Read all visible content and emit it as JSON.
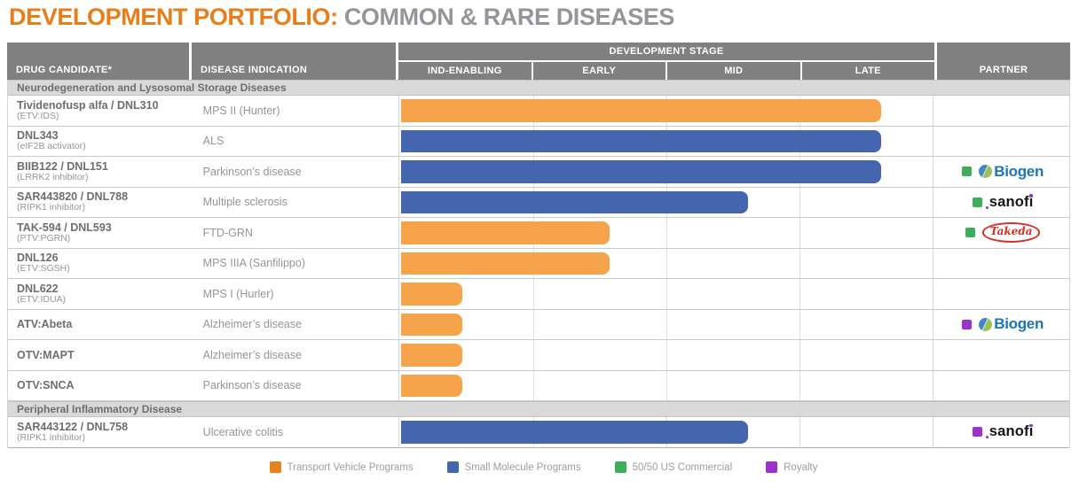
{
  "title": {
    "left": "DEVELOPMENT PORTFOLIO:",
    "right": "COMMON & RARE DISEASES"
  },
  "header": {
    "drug": "DRUG CANDIDATE*",
    "indication": "DISEASE INDICATION",
    "stage_group": "DEVELOPMENT STAGE",
    "stages": [
      "IND-ENABLING",
      "EARLY",
      "MID",
      "LATE"
    ],
    "partner": "PARTNER"
  },
  "colors": {
    "title_orange": "#E87D1A",
    "title_gray": "#939598",
    "header_bg": "#808080",
    "section_bg": "#D9D9D9",
    "bar_orange": "#F5A44C",
    "bar_blue": "#4565AE",
    "marker_green": "#3EAE5C",
    "marker_purple": "#9933CC",
    "biogen_blue": "#1B75BB",
    "takeda_red": "#D92D27",
    "sanofi_black": "#141414"
  },
  "program_colors": {
    "transport_vehicle": "#F5A44C",
    "small_molecule": "#4565AE"
  },
  "marker_colors": {
    "green": "#3EAE5C",
    "purple": "#9933CC"
  },
  "logos": {
    "biogen": "Biogen",
    "sanofi": "sanofi",
    "takeda": "Takeda"
  },
  "rows": [
    {
      "type": "section",
      "label": "Neurodegeneration and Lysosomal Storage Diseases"
    },
    {
      "type": "drug",
      "name": "Tividenofusp alfa / DNL310",
      "sub": "(ETV:IDS)",
      "indication": "MPS II (Hunter)",
      "program": "transport_vehicle",
      "bar_end_pct": 90,
      "partner": null
    },
    {
      "type": "drug",
      "name": "DNL343",
      "sub": "(eIF2B activator)",
      "indication": "ALS",
      "program": "small_molecule",
      "bar_end_pct": 90,
      "partner": null
    },
    {
      "type": "drug",
      "name": "BIIB122 / DNL151",
      "sub": "(LRRK2 inhibitor)",
      "indication": "Parkinson’s disease",
      "program": "small_molecule",
      "bar_end_pct": 90,
      "partner": {
        "marker": "green",
        "logo": "biogen"
      }
    },
    {
      "type": "drug",
      "name": "SAR443820 / DNL788",
      "sub": "(RIPK1 inhibitor)",
      "indication": "Multiple sclerosis",
      "program": "small_molecule",
      "bar_end_pct": 65,
      "partner": {
        "marker": "green",
        "logo": "sanofi"
      }
    },
    {
      "type": "drug",
      "name": "TAK-594 / DNL593",
      "sub": "(PTV:PGRN)",
      "indication": "FTD-GRN",
      "program": "transport_vehicle",
      "bar_end_pct": 39,
      "partner": {
        "marker": "green",
        "logo": "takeda"
      }
    },
    {
      "type": "drug",
      "name": "DNL126",
      "sub": "(ETV:SGSH)",
      "indication": "MPS IIIA (Sanfilippo)",
      "program": "transport_vehicle",
      "bar_end_pct": 39,
      "partner": null
    },
    {
      "type": "drug",
      "name": "DNL622",
      "sub": "(ETV:IDUA)",
      "indication": "MPS I (Hurler)",
      "program": "transport_vehicle",
      "bar_end_pct": 11.5,
      "partner": null
    },
    {
      "type": "drug",
      "name": "ATV:Abeta",
      "sub": "",
      "indication": "Alzheimer’s disease",
      "program": "transport_vehicle",
      "bar_end_pct": 11.5,
      "partner": {
        "marker": "purple",
        "logo": "biogen"
      }
    },
    {
      "type": "drug",
      "name": "OTV:MAPT",
      "sub": "",
      "indication": "Alzheimer’s disease",
      "program": "transport_vehicle",
      "bar_end_pct": 11.5,
      "partner": null
    },
    {
      "type": "drug",
      "name": "OTV:SNCA",
      "sub": "",
      "indication": "Parkinson’s disease",
      "program": "transport_vehicle",
      "bar_end_pct": 11.5,
      "partner": null
    },
    {
      "type": "section",
      "label": "Peripheral Inflammatory Disease"
    },
    {
      "type": "drug",
      "name": "SAR443122 / DNL758",
      "sub": "(RIPK1 inhibitor)",
      "indication": "Ulcerative colitis",
      "program": "small_molecule",
      "bar_end_pct": 65,
      "partner": {
        "marker": "purple",
        "logo": "sanofi"
      }
    }
  ],
  "legend": [
    {
      "label": "Transport Vehicle Programs",
      "color": "#E8821E"
    },
    {
      "label": "Small Molecule Programs",
      "color": "#4565AE"
    },
    {
      "label": "50/50 US Commercial",
      "color": "#3EAE5C"
    },
    {
      "label": "Royalty",
      "color": "#9933CC"
    }
  ],
  "chart_data": {
    "type": "bar",
    "title": "DEVELOPMENT PORTFOLIO: COMMON & RARE DISEASES",
    "xlabel": "DEVELOPMENT STAGE",
    "x_axis_stages": [
      "IND-ENABLING",
      "EARLY",
      "MID",
      "LATE"
    ],
    "value_unit": "development stages completed (0-4 scale, estimated from bar extent)",
    "xlim": [
      0,
      4
    ],
    "grid": true,
    "legend_position": "bottom",
    "legend": [
      "Transport Vehicle Programs",
      "Small Molecule Programs",
      "50/50 US Commercial",
      "Royalty"
    ],
    "series": [
      {
        "label": "Tividenofusp alfa / DNL310 (ETV:IDS)",
        "group": "Neurodegeneration and Lysosomal Storage Diseases",
        "indication": "MPS II (Hunter)",
        "program": "Transport Vehicle Programs",
        "value": 3.6,
        "partner": null,
        "partner_terms": null
      },
      {
        "label": "DNL343 (eIF2B activator)",
        "group": "Neurodegeneration and Lysosomal Storage Diseases",
        "indication": "ALS",
        "program": "Small Molecule Programs",
        "value": 3.6,
        "partner": null,
        "partner_terms": null
      },
      {
        "label": "BIIB122 / DNL151 (LRRK2 inhibitor)",
        "group": "Neurodegeneration and Lysosomal Storage Diseases",
        "indication": "Parkinson’s disease",
        "program": "Small Molecule Programs",
        "value": 3.6,
        "partner": "Biogen",
        "partner_terms": "50/50 US Commercial"
      },
      {
        "label": "SAR443820 / DNL788 (RIPK1 inhibitor)",
        "group": "Neurodegeneration and Lysosomal Storage Diseases",
        "indication": "Multiple sclerosis",
        "program": "Small Molecule Programs",
        "value": 2.6,
        "partner": "sanofi",
        "partner_terms": "50/50 US Commercial"
      },
      {
        "label": "TAK-594 / DNL593 (PTV:PGRN)",
        "group": "Neurodegeneration and Lysosomal Storage Diseases",
        "indication": "FTD-GRN",
        "program": "Transport Vehicle Programs",
        "value": 1.55,
        "partner": "Takeda",
        "partner_terms": "50/50 US Commercial"
      },
      {
        "label": "DNL126 (ETV:SGSH)",
        "group": "Neurodegeneration and Lysosomal Storage Diseases",
        "indication": "MPS IIIA (Sanfilippo)",
        "program": "Transport Vehicle Programs",
        "value": 1.55,
        "partner": null,
        "partner_terms": null
      },
      {
        "label": "DNL622 (ETV:IDUA)",
        "group": "Neurodegeneration and Lysosomal Storage Diseases",
        "indication": "MPS I (Hurler)",
        "program": "Transport Vehicle Programs",
        "value": 0.45,
        "partner": null,
        "partner_terms": null
      },
      {
        "label": "ATV:Abeta",
        "group": "Neurodegeneration and Lysosomal Storage Diseases",
        "indication": "Alzheimer’s disease",
        "program": "Transport Vehicle Programs",
        "value": 0.45,
        "partner": "Biogen",
        "partner_terms": "Royalty"
      },
      {
        "label": "OTV:MAPT",
        "group": "Neurodegeneration and Lysosomal Storage Diseases",
        "indication": "Alzheimer’s disease",
        "program": "Transport Vehicle Programs",
        "value": 0.45,
        "partner": null,
        "partner_terms": null
      },
      {
        "label": "OTV:SNCA",
        "group": "Neurodegeneration and Lysosomal Storage Diseases",
        "indication": "Parkinson’s disease",
        "program": "Transport Vehicle Programs",
        "value": 0.45,
        "partner": null,
        "partner_terms": null
      },
      {
        "label": "SAR443122 / DNL758 (RIPK1 inhibitor)",
        "group": "Peripheral Inflammatory Disease",
        "indication": "Ulcerative colitis",
        "program": "Small Molecule Programs",
        "value": 2.6,
        "partner": "sanofi",
        "partner_terms": "Royalty"
      }
    ]
  }
}
